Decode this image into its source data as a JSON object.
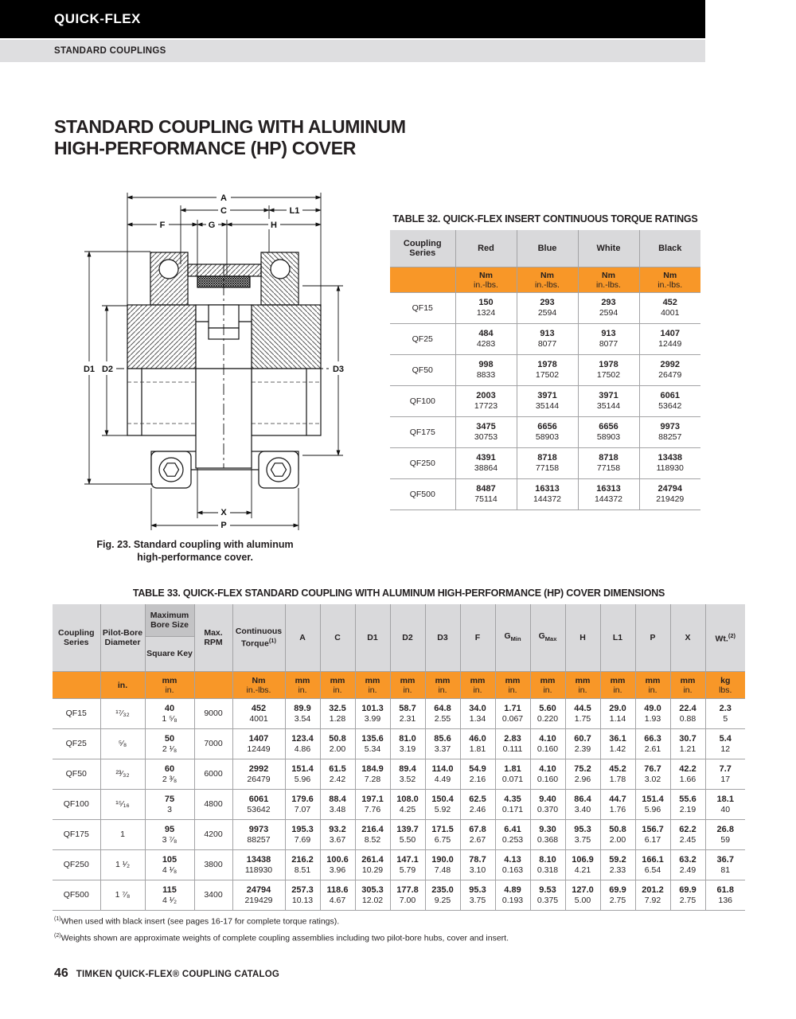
{
  "page": {
    "brand": "QUICK-FLEX",
    "section": "STANDARD COUPLINGS",
    "title1": "STANDARD COUPLING WITH ALUMINUM",
    "title2": "HIGH-PERFORMANCE (HP) COVER",
    "footnotes": [
      {
        "sup": "(1)",
        "text": "When used with black insert (see pages 16-17 for complete torque ratings)."
      },
      {
        "sup": "(2)",
        "text": "Weights shown are approximate weights of complete coupling assemblies including two pilot-bore hubs, cover and insert."
      }
    ],
    "footer_page": "46",
    "footer_text": "TIMKEN QUICK-FLEX® COUPLING CATALOG"
  },
  "colors": {
    "accent_orange": "#F89728",
    "header_gray": "#D9D9DB",
    "dark_gray_cell": "#C3C3C5",
    "bar_black": "#000000"
  },
  "figure": {
    "caption1": "Fig. 23. Standard coupling with aluminum",
    "caption2": "high-performance cover.",
    "dims": {
      "A": "A",
      "C": "C",
      "L1": "L1",
      "F": "F",
      "G": "G",
      "H": "H",
      "D1": "D1",
      "D2": "D2",
      "D3": "D3",
      "X": "X",
      "P": "P"
    }
  },
  "table32": {
    "title": "TABLE 32. QUICK-FLEX INSERT CONTINUOUS TORQUE RATINGS",
    "columns": [
      "Coupling Series",
      "Red",
      "Blue",
      "White",
      "Black"
    ],
    "units": [
      [
        "",
        ""
      ],
      [
        "Nm",
        "in.-lbs."
      ],
      [
        "Nm",
        "in.-lbs."
      ],
      [
        "Nm",
        "in.-lbs."
      ],
      [
        "Nm",
        "in.-lbs."
      ]
    ],
    "rows": [
      {
        "series": "QF15",
        "values": [
          [
            "150",
            "1324"
          ],
          [
            "293",
            "2594"
          ],
          [
            "293",
            "2594"
          ],
          [
            "452",
            "4001"
          ]
        ]
      },
      {
        "series": "QF25",
        "values": [
          [
            "484",
            "4283"
          ],
          [
            "913",
            "8077"
          ],
          [
            "913",
            "8077"
          ],
          [
            "1407",
            "12449"
          ]
        ]
      },
      {
        "series": "QF50",
        "values": [
          [
            "998",
            "8833"
          ],
          [
            "1978",
            "17502"
          ],
          [
            "1978",
            "17502"
          ],
          [
            "2992",
            "26479"
          ]
        ]
      },
      {
        "series": "QF100",
        "values": [
          [
            "2003",
            "17723"
          ],
          [
            "3971",
            "35144"
          ],
          [
            "3971",
            "35144"
          ],
          [
            "6061",
            "53642"
          ]
        ]
      },
      {
        "series": "QF175",
        "values": [
          [
            "3475",
            "30753"
          ],
          [
            "6656",
            "58903"
          ],
          [
            "6656",
            "58903"
          ],
          [
            "9973",
            "88257"
          ]
        ]
      },
      {
        "series": "QF250",
        "values": [
          [
            "4391",
            "38864"
          ],
          [
            "8718",
            "77158"
          ],
          [
            "8718",
            "77158"
          ],
          [
            "13438",
            "118930"
          ]
        ]
      },
      {
        "series": "QF500",
        "values": [
          [
            "8487",
            "75114"
          ],
          [
            "16313",
            "144372"
          ],
          [
            "16313",
            "144372"
          ],
          [
            "24794",
            "219429"
          ]
        ]
      }
    ]
  },
  "table33": {
    "title": "TABLE 33. QUICK-FLEX STANDARD COUPLING WITH ALUMINUM HIGH-PERFORMANCE (HP) COVER DIMENSIONS",
    "headers": [
      {
        "label": "Coupling Series"
      },
      {
        "label": "Pilot-Bore Diameter"
      },
      {
        "label": "Maximum Bore Size",
        "label2": "Square Key",
        "split": true
      },
      {
        "label": "Max. RPM"
      },
      {
        "label": "Continuous Torque",
        "sup": "(1)"
      },
      {
        "label": "A"
      },
      {
        "label": "C"
      },
      {
        "label": "D1"
      },
      {
        "label": "D2"
      },
      {
        "label": "D3"
      },
      {
        "label": "F"
      },
      {
        "label": "G",
        "sub": "Min"
      },
      {
        "label": "G",
        "sub": "Max"
      },
      {
        "label": "H"
      },
      {
        "label": "L1"
      },
      {
        "label": "P"
      },
      {
        "label": "X"
      },
      {
        "label": "Wt.",
        "sup": "(2)"
      }
    ],
    "units": [
      [
        "",
        ""
      ],
      [
        "in.",
        ""
      ],
      [
        "mm",
        "in."
      ],
      [
        "",
        ""
      ],
      [
        "Nm",
        "in.-lbs."
      ],
      [
        "mm",
        "in."
      ],
      [
        "mm",
        "in."
      ],
      [
        "mm",
        "in."
      ],
      [
        "mm",
        "in."
      ],
      [
        "mm",
        "in."
      ],
      [
        "mm",
        "in."
      ],
      [
        "mm",
        "in."
      ],
      [
        "mm",
        "in."
      ],
      [
        "mm",
        "in."
      ],
      [
        "mm",
        "in."
      ],
      [
        "mm",
        "in."
      ],
      [
        "mm",
        "in."
      ],
      [
        "kg",
        "lbs."
      ]
    ],
    "rows": [
      {
        "series": "QF15",
        "pilot": "¹⁷⁄₃₂",
        "bore": [
          "40",
          "1 ⁵⁄₈"
        ],
        "rpm": "9000",
        "values": [
          [
            "452",
            "4001"
          ],
          [
            "89.9",
            "3.54"
          ],
          [
            "32.5",
            "1.28"
          ],
          [
            "101.3",
            "3.99"
          ],
          [
            "58.7",
            "2.31"
          ],
          [
            "64.8",
            "2.55"
          ],
          [
            "34.0",
            "1.34"
          ],
          [
            "1.71",
            "0.067"
          ],
          [
            "5.60",
            "0.220"
          ],
          [
            "44.5",
            "1.75"
          ],
          [
            "29.0",
            "1.14"
          ],
          [
            "49.0",
            "1.93"
          ],
          [
            "22.4",
            "0.88"
          ],
          [
            "2.3",
            "5"
          ]
        ]
      },
      {
        "series": "QF25",
        "pilot": "⁵⁄₈",
        "bore": [
          "50",
          "2 ¹⁄₈"
        ],
        "rpm": "7000",
        "values": [
          [
            "1407",
            "12449"
          ],
          [
            "123.4",
            "4.86"
          ],
          [
            "50.8",
            "2.00"
          ],
          [
            "135.6",
            "5.34"
          ],
          [
            "81.0",
            "3.19"
          ],
          [
            "85.6",
            "3.37"
          ],
          [
            "46.0",
            "1.81"
          ],
          [
            "2.83",
            "0.111"
          ],
          [
            "4.10",
            "0.160"
          ],
          [
            "60.7",
            "2.39"
          ],
          [
            "36.1",
            "1.42"
          ],
          [
            "66.3",
            "2.61"
          ],
          [
            "30.7",
            "1.21"
          ],
          [
            "5.4",
            "12"
          ]
        ]
      },
      {
        "series": "QF50",
        "pilot": "²³⁄₃₂",
        "bore": [
          "60",
          "2 ³⁄₈"
        ],
        "rpm": "6000",
        "values": [
          [
            "2992",
            "26479"
          ],
          [
            "151.4",
            "5.96"
          ],
          [
            "61.5",
            "2.42"
          ],
          [
            "184.9",
            "7.28"
          ],
          [
            "89.4",
            "3.52"
          ],
          [
            "114.0",
            "4.49"
          ],
          [
            "54.9",
            "2.16"
          ],
          [
            "1.81",
            "0.071"
          ],
          [
            "4.10",
            "0.160"
          ],
          [
            "75.2",
            "2.96"
          ],
          [
            "45.2",
            "1.78"
          ],
          [
            "76.7",
            "3.02"
          ],
          [
            "42.2",
            "1.66"
          ],
          [
            "7.7",
            "17"
          ]
        ]
      },
      {
        "series": "QF100",
        "pilot": "¹⁵⁄₁₆",
        "bore": [
          "75",
          "3"
        ],
        "rpm": "4800",
        "values": [
          [
            "6061",
            "53642"
          ],
          [
            "179.6",
            "7.07"
          ],
          [
            "88.4",
            "3.48"
          ],
          [
            "197.1",
            "7.76"
          ],
          [
            "108.0",
            "4.25"
          ],
          [
            "150.4",
            "5.92"
          ],
          [
            "62.5",
            "2.46"
          ],
          [
            "4.35",
            "0.171"
          ],
          [
            "9.40",
            "0.370"
          ],
          [
            "86.4",
            "3.40"
          ],
          [
            "44.7",
            "1.76"
          ],
          [
            "151.4",
            "5.96"
          ],
          [
            "55.6",
            "2.19"
          ],
          [
            "18.1",
            "40"
          ]
        ]
      },
      {
        "series": "QF175",
        "pilot": "1",
        "bore": [
          "95",
          "3 ⁷⁄₈"
        ],
        "rpm": "4200",
        "values": [
          [
            "9973",
            "88257"
          ],
          [
            "195.3",
            "7.69"
          ],
          [
            "93.2",
            "3.67"
          ],
          [
            "216.4",
            "8.52"
          ],
          [
            "139.7",
            "5.50"
          ],
          [
            "171.5",
            "6.75"
          ],
          [
            "67.8",
            "2.67"
          ],
          [
            "6.41",
            "0.253"
          ],
          [
            "9.30",
            "0.368"
          ],
          [
            "95.3",
            "3.75"
          ],
          [
            "50.8",
            "2.00"
          ],
          [
            "156.7",
            "6.17"
          ],
          [
            "62.2",
            "2.45"
          ],
          [
            "26.8",
            "59"
          ]
        ]
      },
      {
        "series": "QF250",
        "pilot": "1 ¹⁄₂",
        "bore": [
          "105",
          "4 ¹⁄₈"
        ],
        "rpm": "3800",
        "values": [
          [
            "13438",
            "118930"
          ],
          [
            "216.2",
            "8.51"
          ],
          [
            "100.6",
            "3.96"
          ],
          [
            "261.4",
            "10.29"
          ],
          [
            "147.1",
            "5.79"
          ],
          [
            "190.0",
            "7.48"
          ],
          [
            "78.7",
            "3.10"
          ],
          [
            "4.13",
            "0.163"
          ],
          [
            "8.10",
            "0.318"
          ],
          [
            "106.9",
            "4.21"
          ],
          [
            "59.2",
            "2.33"
          ],
          [
            "166.1",
            "6.54"
          ],
          [
            "63.2",
            "2.49"
          ],
          [
            "36.7",
            "81"
          ]
        ]
      },
      {
        "series": "QF500",
        "pilot": "1 ⁷⁄₈",
        "bore": [
          "115",
          "4 ¹⁄₂"
        ],
        "rpm": "3400",
        "values": [
          [
            "24794",
            "219429"
          ],
          [
            "257.3",
            "10.13"
          ],
          [
            "118.6",
            "4.67"
          ],
          [
            "305.3",
            "12.02"
          ],
          [
            "177.8",
            "7.00"
          ],
          [
            "235.0",
            "9.25"
          ],
          [
            "95.3",
            "3.75"
          ],
          [
            "4.89",
            "0.193"
          ],
          [
            "9.53",
            "0.375"
          ],
          [
            "127.0",
            "5.00"
          ],
          [
            "69.9",
            "2.75"
          ],
          [
            "201.2",
            "7.92"
          ],
          [
            "69.9",
            "2.75"
          ],
          [
            "61.8",
            "136"
          ]
        ]
      }
    ]
  }
}
